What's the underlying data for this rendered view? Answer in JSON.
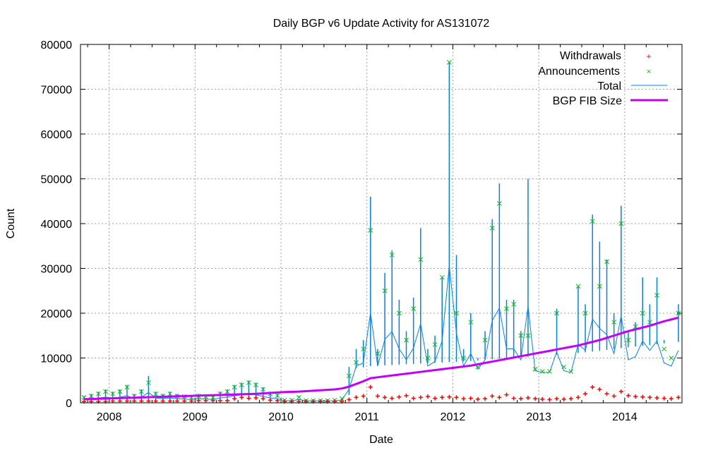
{
  "chart_data": {
    "type": "line",
    "title": "Daily BGP v6 Update Activity for AS131072",
    "xlabel": "Date",
    "ylabel": "Count",
    "xlim": [
      "2007-09",
      "2014-09"
    ],
    "ylim": [
      0,
      80000
    ],
    "yticks": [
      "0",
      "10000",
      "20000",
      "30000",
      "40000",
      "50000",
      "60000",
      "70000",
      "80000"
    ],
    "xticks": [
      "2008",
      "2009",
      "2010",
      "2011",
      "2012",
      "2013",
      "2014"
    ],
    "grid": true,
    "legend_position": "top-right",
    "colors": {
      "withdrawals": "#ff0000",
      "announcements": "#00c000",
      "total": "#0080ff",
      "fib": "#c000ff"
    },
    "x": [
      "2007-09",
      "2007-10",
      "2007-11",
      "2007-12",
      "2008-01",
      "2008-02",
      "2008-03",
      "2008-04",
      "2008-05",
      "2008-06",
      "2008-07",
      "2008-08",
      "2008-09",
      "2008-10",
      "2008-11",
      "2008-12",
      "2009-01",
      "2009-02",
      "2009-03",
      "2009-04",
      "2009-05",
      "2009-06",
      "2009-07",
      "2009-08",
      "2009-09",
      "2009-10",
      "2009-11",
      "2009-12",
      "2010-01",
      "2010-02",
      "2010-03",
      "2010-04",
      "2010-05",
      "2010-06",
      "2010-07",
      "2010-08",
      "2010-09",
      "2010-10",
      "2010-11",
      "2010-12",
      "2011-01",
      "2011-02",
      "2011-03",
      "2011-04",
      "2011-05",
      "2011-06",
      "2011-07",
      "2011-08",
      "2011-09",
      "2011-10",
      "2011-11",
      "2011-12",
      "2012-01",
      "2012-02",
      "2012-03",
      "2012-04",
      "2012-05",
      "2012-06",
      "2012-07",
      "2012-08",
      "2012-09",
      "2012-10",
      "2012-11",
      "2012-12",
      "2013-01",
      "2013-02",
      "2013-03",
      "2013-04",
      "2013-05",
      "2013-06",
      "2013-07",
      "2013-08",
      "2013-09",
      "2013-10",
      "2013-11",
      "2013-12",
      "2014-01",
      "2014-02",
      "2014-03",
      "2014-04",
      "2014-05",
      "2014-06",
      "2014-07",
      "2014-08"
    ],
    "series": [
      {
        "name": "Withdrawals",
        "style": "points-plus",
        "values": [
          300,
          300,
          300,
          300,
          400,
          400,
          400,
          400,
          400,
          400,
          400,
          400,
          400,
          400,
          400,
          400,
          500,
          500,
          500,
          500,
          500,
          900,
          1200,
          1000,
          1100,
          900,
          600,
          500,
          300,
          300,
          300,
          300,
          300,
          300,
          300,
          300,
          300,
          700,
          1200,
          1500,
          3500,
          1500,
          1200,
          1000,
          1300,
          1600,
          1000,
          1200,
          1400,
          1000,
          1200,
          1300,
          1200,
          900,
          1000,
          800,
          900,
          1500,
          1200,
          1800,
          1000,
          900,
          1100,
          900,
          800,
          700,
          900,
          800,
          900,
          1200,
          2000,
          3500,
          3000,
          2000,
          1500,
          2500,
          1600,
          1400,
          1300,
          1200,
          1100,
          1000,
          900,
          1200
        ]
      },
      {
        "name": "Announcements",
        "style": "points-x",
        "values": [
          1200,
          1500,
          2000,
          2500,
          2000,
          2500,
          3500,
          1500,
          2500,
          4500,
          2000,
          1500,
          2000,
          1500,
          1400,
          1200,
          1500,
          1400,
          1200,
          2000,
          2500,
          3500,
          4000,
          4500,
          4000,
          3000,
          2000,
          1600,
          600,
          600,
          1200,
          500,
          500,
          500,
          500,
          600,
          900,
          6000,
          9000,
          12000,
          38500,
          11000,
          25000,
          33000,
          20000,
          14000,
          21000,
          32000,
          10000,
          13000,
          28000,
          76000,
          20000,
          10000,
          18000,
          8000,
          14000,
          39000,
          44500,
          21000,
          22000,
          15000,
          15000,
          7500,
          7000,
          7000,
          20000,
          8000,
          7000,
          26000,
          20000,
          40500,
          26000,
          31500,
          18000,
          40000,
          14000,
          17000,
          20000,
          18000,
          24000,
          12000,
          10000,
          20000
        ]
      },
      {
        "name": "Total",
        "style": "line",
        "values": [
          1500,
          2000,
          2500,
          3000,
          2500,
          3000,
          4000,
          2000,
          3000,
          6000,
          2500,
          2000,
          2500,
          2000,
          1800,
          1500,
          2000,
          1800,
          1500,
          2500,
          3000,
          4000,
          4500,
          5000,
          4500,
          3500,
          2500,
          2000,
          800,
          800,
          1500,
          700,
          700,
          700,
          700,
          800,
          1200,
          8000,
          12000,
          14000,
          46000,
          12000,
          29000,
          34000,
          23000,
          16000,
          23500,
          39000,
          12000,
          15000,
          28000,
          76000,
          33000,
          12000,
          20000,
          10000,
          16000,
          41000,
          49000,
          23000,
          23000,
          16000,
          50000,
          9000,
          8000,
          8000,
          21000,
          9000,
          8000,
          26000,
          22000,
          42000,
          36000,
          32000,
          20000,
          44000,
          16000,
          18000,
          28000,
          22000,
          28000,
          14000,
          12000,
          22000
        ]
      },
      {
        "name": "BGP FIB Size",
        "style": "thick-line",
        "values": [
          800,
          850,
          900,
          950,
          1000,
          1050,
          1100,
          1150,
          1200,
          1250,
          1300,
          1350,
          1400,
          1450,
          1500,
          1550,
          1600,
          1650,
          1700,
          1750,
          1800,
          1850,
          1900,
          1950,
          2000,
          2100,
          2200,
          2300,
          2400,
          2450,
          2500,
          2600,
          2700,
          2800,
          2900,
          3000,
          3200,
          3600,
          4200,
          4800,
          5500,
          5700,
          5900,
          6100,
          6300,
          6500,
          6700,
          6900,
          7100,
          7300,
          7500,
          7700,
          7900,
          8100,
          8300,
          8600,
          8900,
          9200,
          9500,
          9800,
          10100,
          10400,
          10700,
          11000,
          11300,
          11600,
          11900,
          12200,
          12500,
          12800,
          13200,
          13600,
          14000,
          14500,
          15000,
          15500,
          16000,
          16400,
          16800,
          17200,
          17700,
          18200,
          18600,
          19000
        ]
      }
    ]
  }
}
